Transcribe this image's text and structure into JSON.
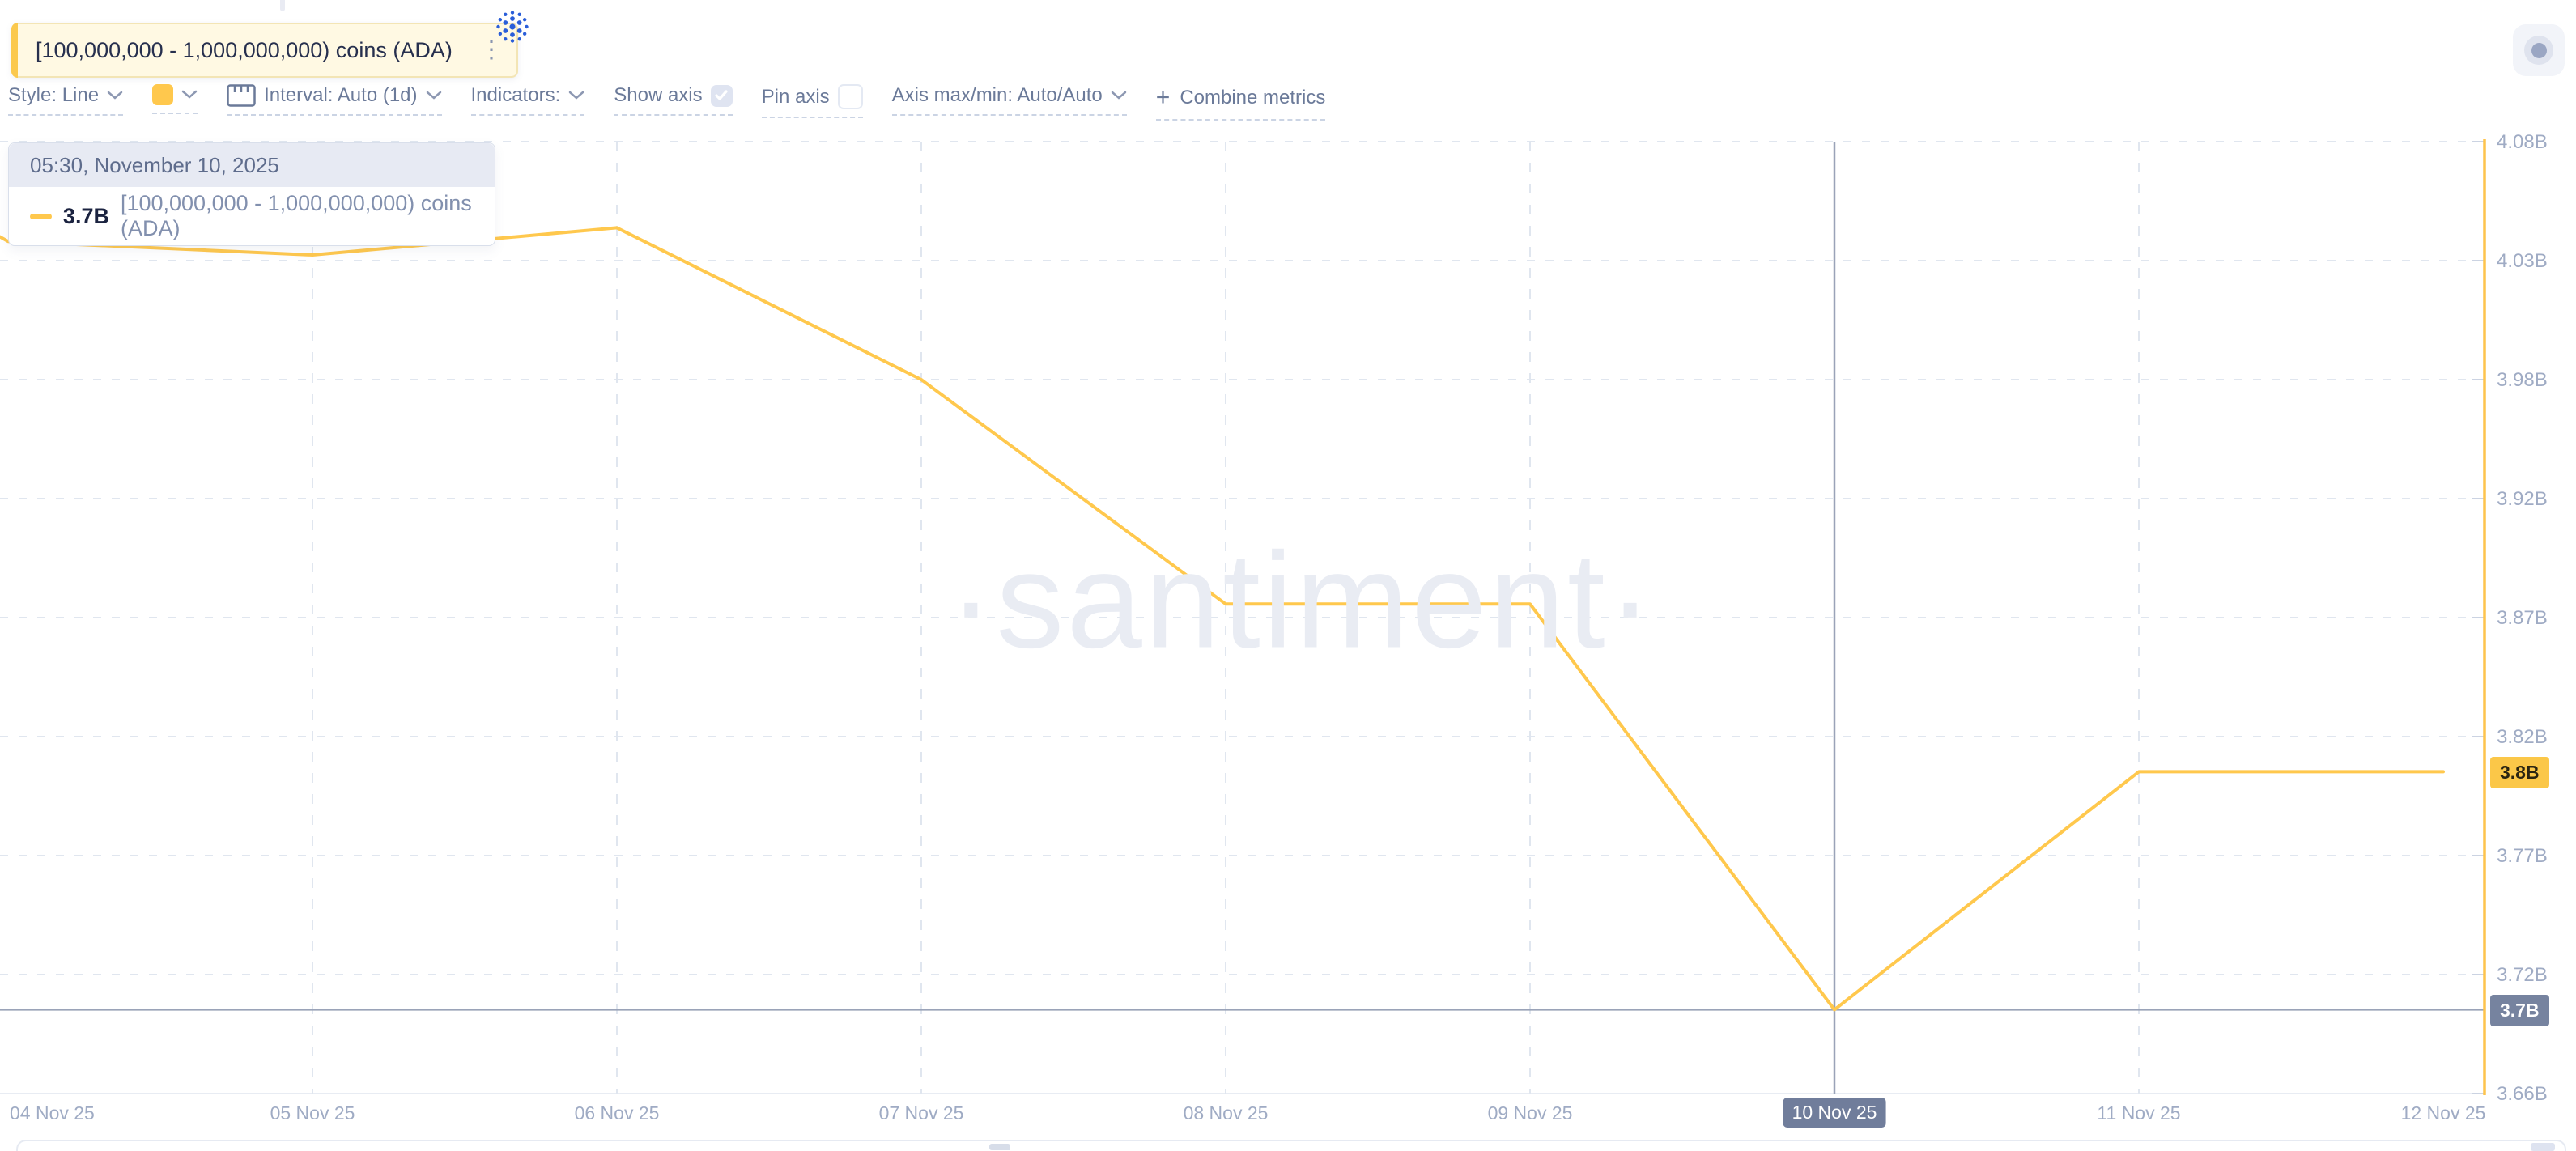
{
  "metric": {
    "label": "[100,000,000 - 1,000,000,000) coins (ADA)",
    "accent_color": "#FBC94E",
    "asset_icon": "cardano-logo",
    "asset_icon_color": "#2A5ED9"
  },
  "toolbar": {
    "style": "Style: Line",
    "swatch_color": "#FFC84D",
    "interval": "Interval: Auto (1d)",
    "indicators": "Indicators:",
    "show_axis": "Show axis",
    "show_axis_checked": true,
    "pin_axis": "Pin axis",
    "pin_axis_checked": false,
    "axis_maxmin": "Axis max/min: Auto/Auto",
    "plus": "+",
    "combine_metrics": "Combine metrics"
  },
  "tooltip": {
    "header": "05:30, November 10, 2025",
    "value": "3.7B",
    "label": "[100,000,000 - 1,000,000,000) coins (ADA)",
    "marker_color": "#FFC84D"
  },
  "watermark": "·santiment·",
  "chart_data": {
    "type": "line",
    "title": "[100,000,000 - 1,000,000,000) coins (ADA)",
    "unit": "billions of ADA coins",
    "categories": [
      "04 Nov 25",
      "05 Nov 25",
      "06 Nov 25",
      "07 Nov 25",
      "08 Nov 25",
      "09 Nov 25",
      "10 Nov 25",
      "11 Nov 25",
      "12 Nov 25"
    ],
    "series": [
      {
        "name": "[100,000,000 - 1,000,000,000) coins (ADA)",
        "color": "#FFC84D",
        "values": [
          4.036,
          4.03,
          4.042,
          3.975,
          3.876,
          3.876,
          3.697,
          3.802,
          3.802
        ]
      }
    ],
    "left_edge_value": 4.038,
    "ylim": [
      3.66,
      4.08
    ],
    "y_ticks": [
      "4.08B",
      "4.03B",
      "3.98B",
      "3.92B",
      "3.87B",
      "3.82B",
      "3.77B",
      "3.72B",
      "3.66B"
    ],
    "grid": "dashed",
    "axis_color": "#FDC44D",
    "markers": {
      "last_value_label": "3.8B",
      "crosshair_value_label": "3.7B",
      "crosshair_date": "10 Nov 25",
      "crosshair_time": "05:30, November 10, 2025"
    }
  }
}
